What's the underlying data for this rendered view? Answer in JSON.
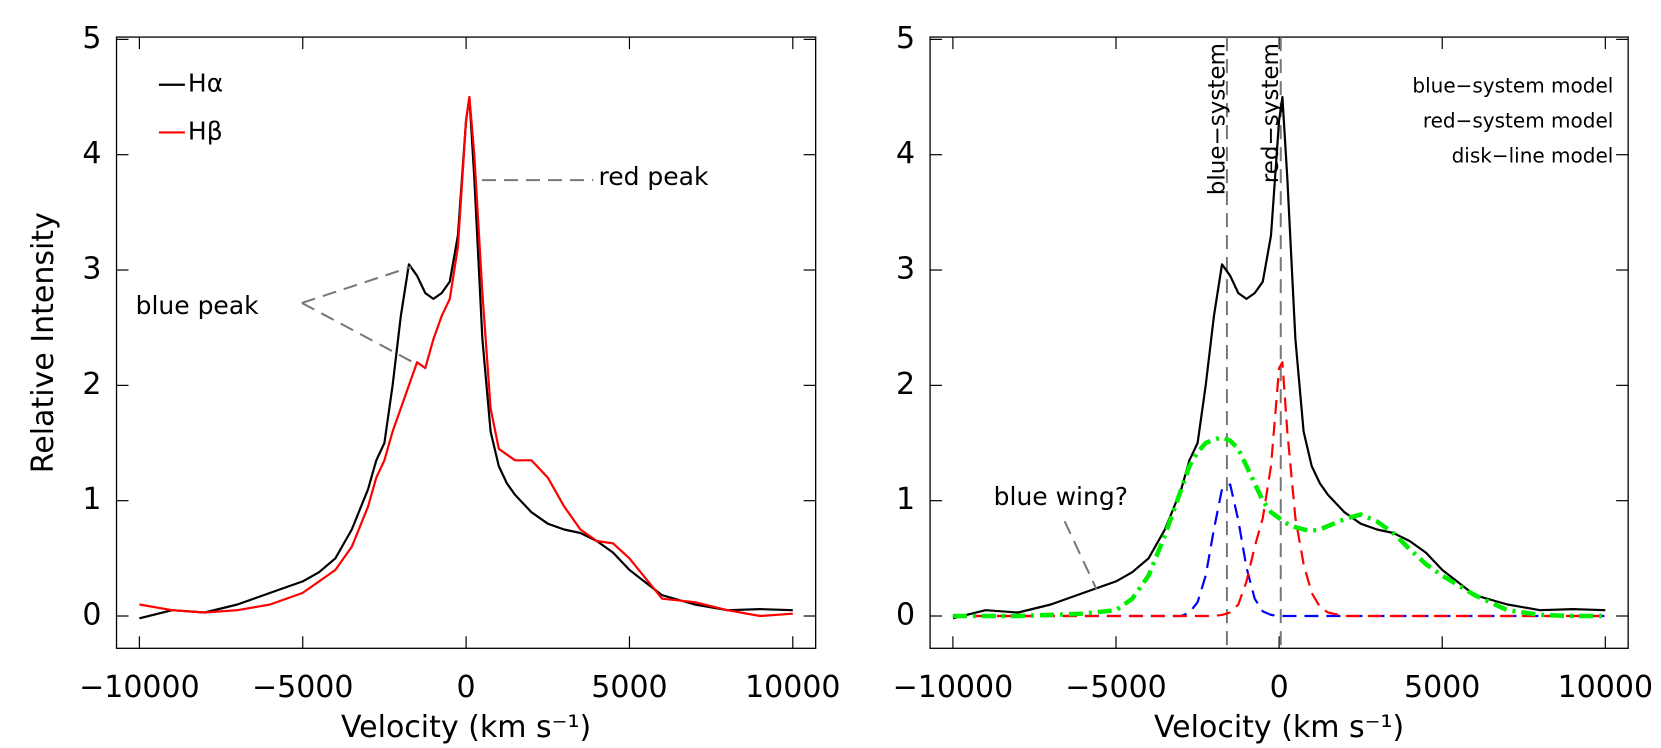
{
  "chart_data": [
    {
      "type": "line",
      "xlabel": "Velocity (km s⁻¹)",
      "ylabel": "Relative Intensity",
      "xlim": [
        -10700,
        10700
      ],
      "ylim": [
        -0.28,
        5.02
      ],
      "xticks": [
        {
          "value": -10000,
          "label": "−10000"
        },
        {
          "value": -5000,
          "label": "−5000"
        },
        0,
        5000,
        10000
      ],
      "yticks": [
        0,
        1,
        2,
        3,
        4,
        5
      ],
      "legend": "upper left",
      "legend_handles": true,
      "x": [
        -10000,
        -9000,
        -8000,
        -7000,
        -6000,
        -5000,
        -4500,
        -4000,
        -3500,
        -3000,
        -2750,
        -2500,
        -2250,
        -2000,
        -1750,
        -1500,
        -1250,
        -1000,
        -750,
        -500,
        -250,
        0,
        100,
        250,
        500,
        750,
        1000,
        1250,
        1500,
        2000,
        2500,
        3000,
        3500,
        4000,
        4500,
        5000,
        6000,
        7000,
        8000,
        9000,
        10000
      ],
      "series": [
        {
          "name": "Hα",
          "color": "#000000",
          "dash": "solid",
          "values": [
            -0.02,
            0.05,
            0.03,
            0.1,
            0.2,
            0.3,
            0.38,
            0.5,
            0.75,
            1.1,
            1.35,
            1.5,
            2.0,
            2.6,
            3.05,
            2.95,
            2.8,
            2.75,
            2.8,
            2.9,
            3.3,
            4.3,
            4.5,
            3.8,
            2.4,
            1.6,
            1.3,
            1.15,
            1.05,
            0.9,
            0.8,
            0.75,
            0.72,
            0.65,
            0.55,
            0.4,
            0.18,
            0.1,
            0.05,
            0.06,
            0.05
          ]
        },
        {
          "name": "Hβ",
          "color": "#ff0000",
          "dash": "solid",
          "values": [
            0.1,
            0.05,
            0.03,
            0.05,
            0.1,
            0.2,
            0.3,
            0.4,
            0.6,
            0.95,
            1.2,
            1.35,
            1.6,
            1.8,
            2.0,
            2.2,
            2.15,
            2.4,
            2.6,
            2.75,
            3.2,
            4.3,
            4.5,
            4.0,
            2.8,
            1.8,
            1.45,
            1.4,
            1.35,
            1.35,
            1.2,
            0.95,
            0.75,
            0.65,
            0.63,
            0.5,
            0.15,
            0.12,
            0.05,
            0.0,
            0.02
          ]
        }
      ],
      "annotations": [
        "red peak",
        "blue peak"
      ]
    },
    {
      "type": "line",
      "xlabel": "Velocity (km s⁻¹)",
      "xlim": [
        -10700,
        10700
      ],
      "ylim": [
        -0.28,
        5.02
      ],
      "xticks": [
        {
          "value": -10000,
          "label": "−10000"
        },
        {
          "value": -5000,
          "label": "−5000"
        },
        0,
        5000,
        10000
      ],
      "yticks": [
        0,
        1,
        2,
        3,
        4,
        5
      ],
      "legend": "upper right",
      "legend_handles": false,
      "x": [
        -10000,
        -9000,
        -8000,
        -7000,
        -6000,
        -5000,
        -4500,
        -4000,
        -3500,
        -3000,
        -2750,
        -2500,
        -2250,
        -2000,
        -1750,
        -1500,
        -1250,
        -1000,
        -750,
        -500,
        -250,
        0,
        100,
        250,
        500,
        750,
        1000,
        1250,
        1500,
        2000,
        2500,
        3000,
        3500,
        4000,
        4500,
        5000,
        6000,
        7000,
        8000,
        9000,
        10000
      ],
      "series": [
        {
          "color": "#000000",
          "dash": "solid",
          "values": [
            -0.02,
            0.05,
            0.03,
            0.1,
            0.2,
            0.3,
            0.38,
            0.5,
            0.75,
            1.1,
            1.35,
            1.5,
            2.0,
            2.6,
            3.05,
            2.95,
            2.8,
            2.75,
            2.8,
            2.9,
            3.3,
            4.3,
            4.5,
            3.8,
            2.4,
            1.6,
            1.3,
            1.15,
            1.05,
            0.9,
            0.8,
            0.75,
            0.72,
            0.65,
            0.55,
            0.4,
            0.18,
            0.1,
            0.05,
            0.06,
            0.05
          ]
        },
        {
          "name": "blue−system model",
          "color": "#0000ff",
          "dash": "dashed",
          "values": [
            0,
            0,
            0,
            0,
            0,
            0,
            0,
            0,
            0,
            0,
            0.03,
            0.12,
            0.35,
            0.75,
            1.1,
            1.14,
            0.83,
            0.42,
            0.15,
            0.04,
            0.01,
            0,
            0,
            0,
            0,
            0,
            0,
            0,
            0,
            0,
            0,
            0,
            0,
            0,
            0,
            0,
            0,
            0,
            0,
            0,
            0
          ]
        },
        {
          "name": "red−system model",
          "color": "#ff0000",
          "dash": "dashed",
          "values": [
            0,
            0,
            0,
            0,
            0,
            0,
            0,
            0,
            0,
            0,
            0,
            0,
            0,
            0,
            0.01,
            0.03,
            0.1,
            0.3,
            0.6,
            0.85,
            1.3,
            2.15,
            2.2,
            1.6,
            0.85,
            0.45,
            0.2,
            0.08,
            0.03,
            0,
            0,
            0,
            0,
            0,
            0,
            0,
            0,
            0,
            0,
            0,
            0
          ]
        },
        {
          "name": "disk−line model",
          "color": "#00ee00",
          "dash": "dashdot",
          "values": [
            0,
            0,
            0,
            0.01,
            0.02,
            0.05,
            0.15,
            0.35,
            0.7,
            1.1,
            1.3,
            1.42,
            1.5,
            1.53,
            1.55,
            1.52,
            1.45,
            1.3,
            1.15,
            1.0,
            0.9,
            0.85,
            0.83,
            0.8,
            0.77,
            0.75,
            0.74,
            0.75,
            0.78,
            0.84,
            0.88,
            0.82,
            0.72,
            0.58,
            0.45,
            0.35,
            0.18,
            0.05,
            0.01,
            0,
            0
          ]
        }
      ],
      "vlines": [
        {
          "x": -1600,
          "label": "blue−system"
        },
        {
          "x": 50,
          "label": "red−system"
        }
      ],
      "annotations": [
        "blue wing?"
      ]
    }
  ]
}
